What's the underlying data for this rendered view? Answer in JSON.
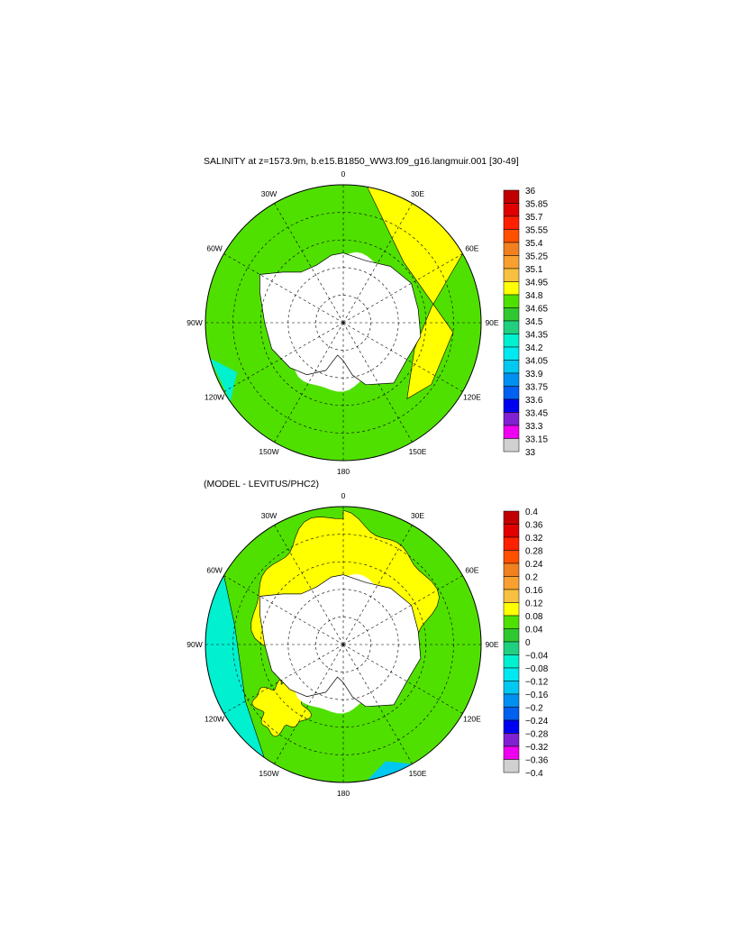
{
  "panels": [
    {
      "title": "SALINITY at z=1573.9m, b.e15.B1850_WW3.f09_g16.langmuir.001 [30-49]",
      "lon_labels": [
        "0",
        "30E",
        "60E",
        "90E",
        "120E",
        "150E",
        "180",
        "150W",
        "120W",
        "90W",
        "60W",
        "30W"
      ],
      "colorbar": {
        "labels": [
          "36",
          "35.85",
          "35.7",
          "35.55",
          "35.4",
          "35.25",
          "35.1",
          "34.95",
          "34.8",
          "34.65",
          "34.5",
          "34.35",
          "34.2",
          "34.05",
          "33.9",
          "33.75",
          "33.6",
          "33.45",
          "33.3",
          "33.15",
          "33"
        ],
        "colors": [
          "#c00000",
          "#e00000",
          "#ff2000",
          "#ff5000",
          "#f08020",
          "#f8a030",
          "#f8c040",
          "#ffff00",
          "#50e000",
          "#30c830",
          "#20d080",
          "#00f0d0",
          "#00e8f0",
          "#00c8f0",
          "#0090f0",
          "#0060f0",
          "#0000f0",
          "#8020d0",
          "#f000f0",
          "#d0d0d0",
          "#707070"
        ]
      }
    },
    {
      "title": "(MODEL - LEVITUS/PHC2)",
      "lon_labels": [
        "0",
        "30E",
        "60E",
        "90E",
        "120E",
        "150E",
        "180",
        "150W",
        "120W",
        "90W",
        "60W",
        "30W"
      ],
      "colorbar": {
        "labels": [
          "0.4",
          "0.36",
          "0.32",
          "0.28",
          "0.24",
          "0.2",
          "0.16",
          "0.12",
          "0.08",
          "0.04",
          "0",
          "−0.04",
          "−0.08",
          "−0.12",
          "−0.16",
          "−0.2",
          "−0.24",
          "−0.28",
          "−0.32",
          "−0.36",
          "−0.4"
        ],
        "colors": [
          "#c00000",
          "#e00000",
          "#ff2000",
          "#ff5000",
          "#f08020",
          "#f8a030",
          "#f8c040",
          "#ffff00",
          "#50e000",
          "#30c830",
          "#20d080",
          "#00f0d0",
          "#00e8f0",
          "#00c8f0",
          "#0090f0",
          "#0060f0",
          "#0000f0",
          "#8020d0",
          "#f000f0",
          "#d0d0d0",
          "#707070"
        ]
      }
    }
  ]
}
